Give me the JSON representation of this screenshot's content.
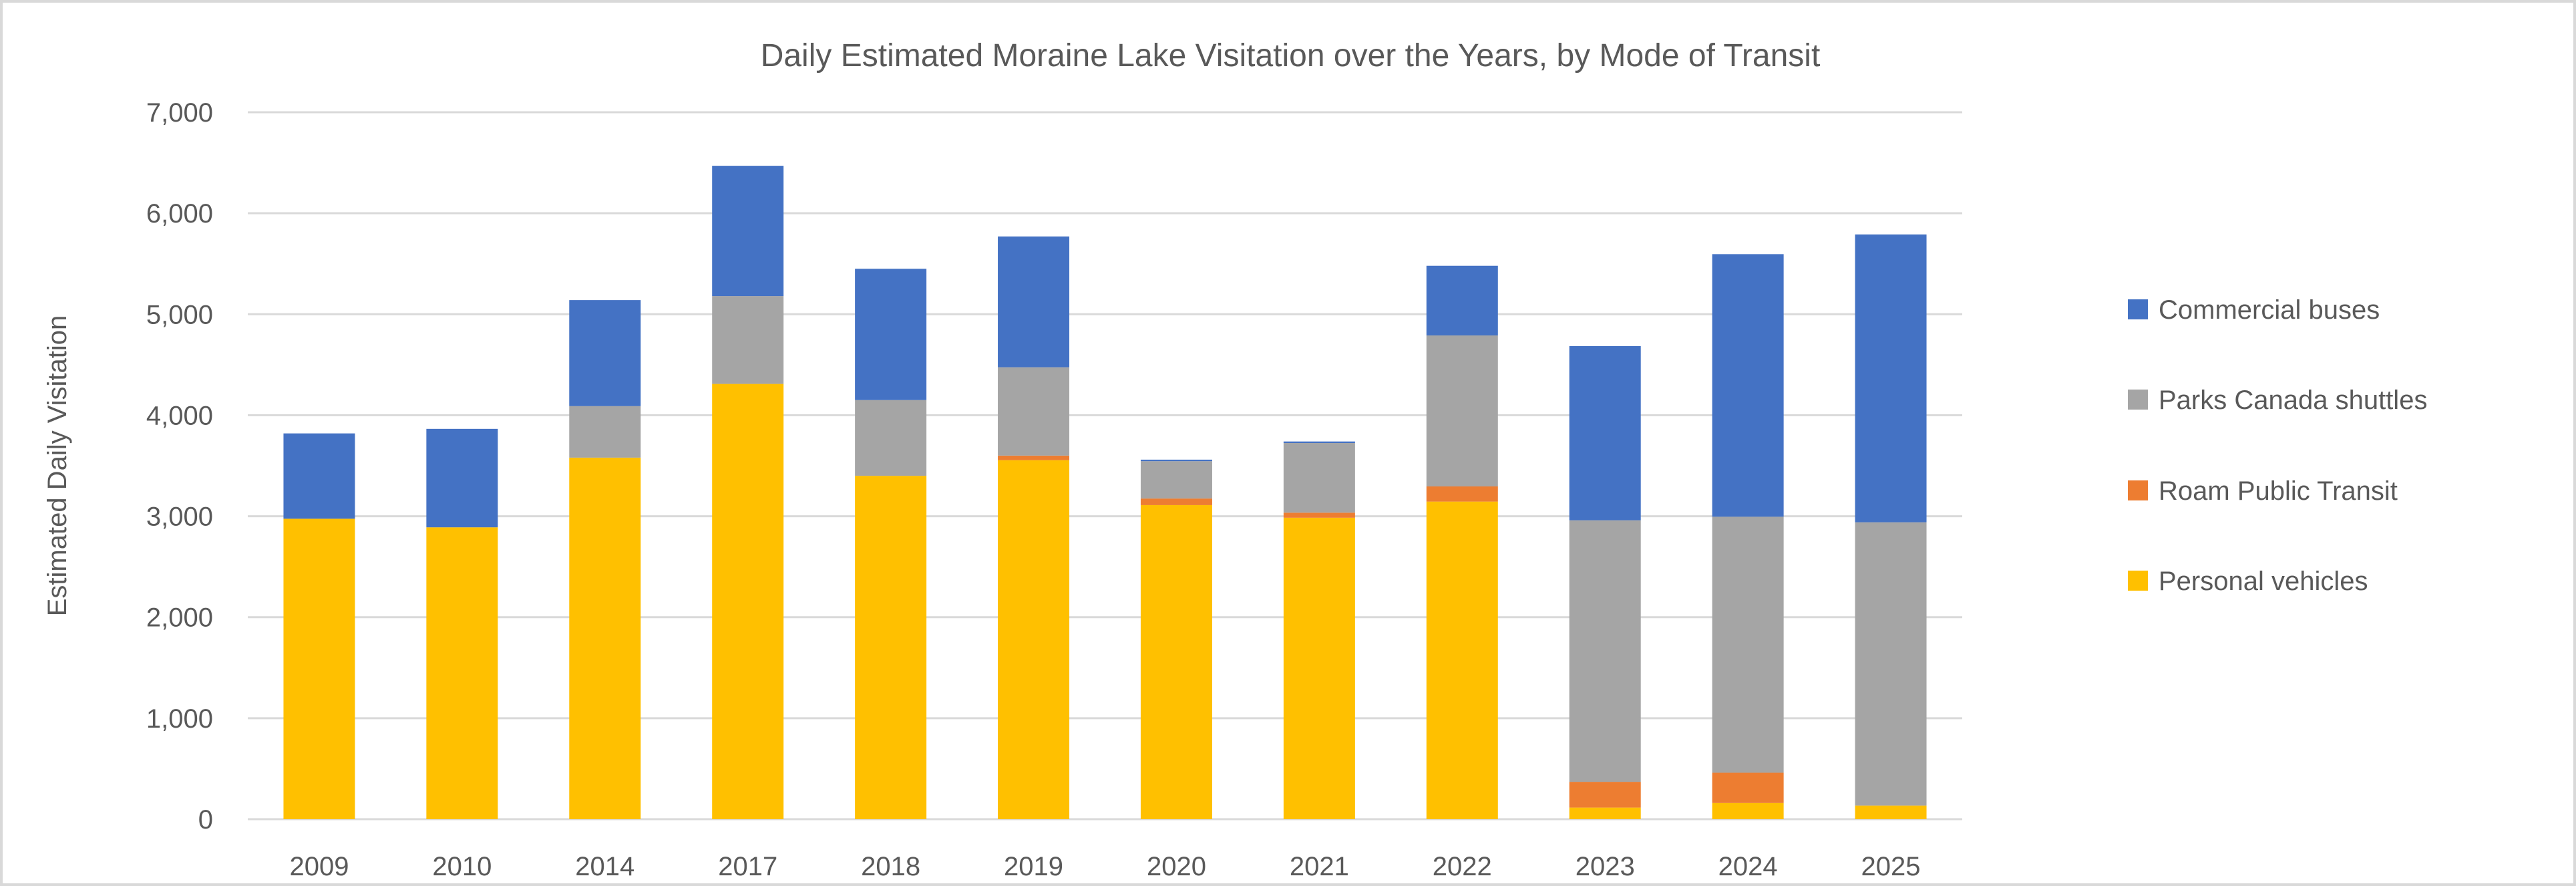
{
  "chart_data": {
    "type": "bar",
    "stacked": true,
    "title": "Daily Estimated Moraine Lake Visitation over the Years, by Mode of Transit",
    "xlabel": "",
    "ylabel": "Estimated Daily Visitation",
    "ylim": [
      0,
      7000
    ],
    "yticks": [
      0,
      1000,
      2000,
      3000,
      4000,
      5000,
      6000,
      7000
    ],
    "ytick_labels": [
      "0",
      "1,000",
      "2,000",
      "3,000",
      "4,000",
      "5,000",
      "6,000",
      "7,000"
    ],
    "grid": true,
    "legend_position": "right",
    "categories": [
      "2009",
      "2010",
      "2014",
      "2017",
      "2018",
      "2019",
      "2020",
      "2021",
      "2022",
      "2023",
      "2024",
      "2025"
    ],
    "series": [
      {
        "name": "Personal vehicles",
        "color": "#FFC000",
        "values": [
          2975,
          2890,
          3580,
          4310,
          3400,
          3555,
          3110,
          2985,
          3145,
          115,
          160,
          135
        ]
      },
      {
        "name": "Roam Public Transit",
        "color": "#ED7D31",
        "values": [
          0,
          0,
          0,
          0,
          0,
          45,
          65,
          50,
          150,
          255,
          300,
          0
        ]
      },
      {
        "name": "Parks Canada shuttles",
        "color": "#A5A5A5",
        "values": [
          0,
          0,
          510,
          870,
          750,
          875,
          370,
          690,
          1495,
          2590,
          2535,
          2805
        ]
      },
      {
        "name": "Commercial buses",
        "color": "#4472C4",
        "values": [
          845,
          975,
          1050,
          1290,
          1300,
          1295,
          15,
          15,
          690,
          1725,
          2600,
          2850
        ]
      }
    ],
    "legend_order": [
      "Commercial buses",
      "Parks Canada shuttles",
      "Roam Public Transit",
      "Personal vehicles"
    ]
  }
}
